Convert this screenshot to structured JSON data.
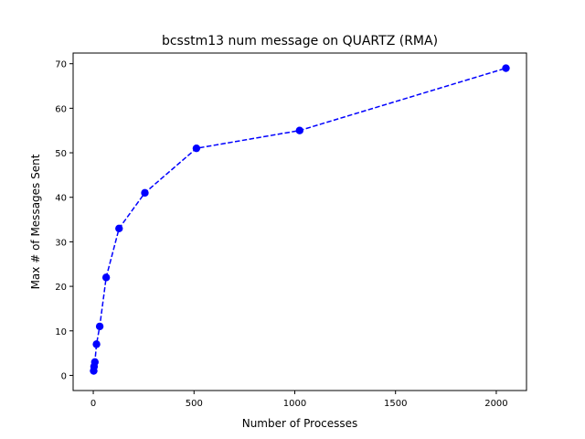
{
  "chart_data": {
    "type": "line",
    "title": "bcsstm13 num message on QUARTZ (RMA)",
    "xlabel": "Number of Processes",
    "ylabel": "Max # of Messages Sent",
    "xlim": [
      -100,
      2150
    ],
    "ylim": [
      -3.4,
      72.4
    ],
    "xticks": [
      0,
      500,
      1000,
      1500,
      2000
    ],
    "yticks": [
      0,
      10,
      20,
      30,
      40,
      50,
      60,
      70
    ],
    "grid": false,
    "series": [
      {
        "x": [
          2,
          4,
          8,
          16,
          32,
          64,
          128,
          256,
          512,
          1024,
          2048
        ],
        "y": [
          1,
          2,
          3,
          7,
          11,
          22,
          33,
          41,
          51,
          55,
          69
        ],
        "color": "#0000ff",
        "line_style": "dashed",
        "marker": "circle"
      }
    ]
  }
}
